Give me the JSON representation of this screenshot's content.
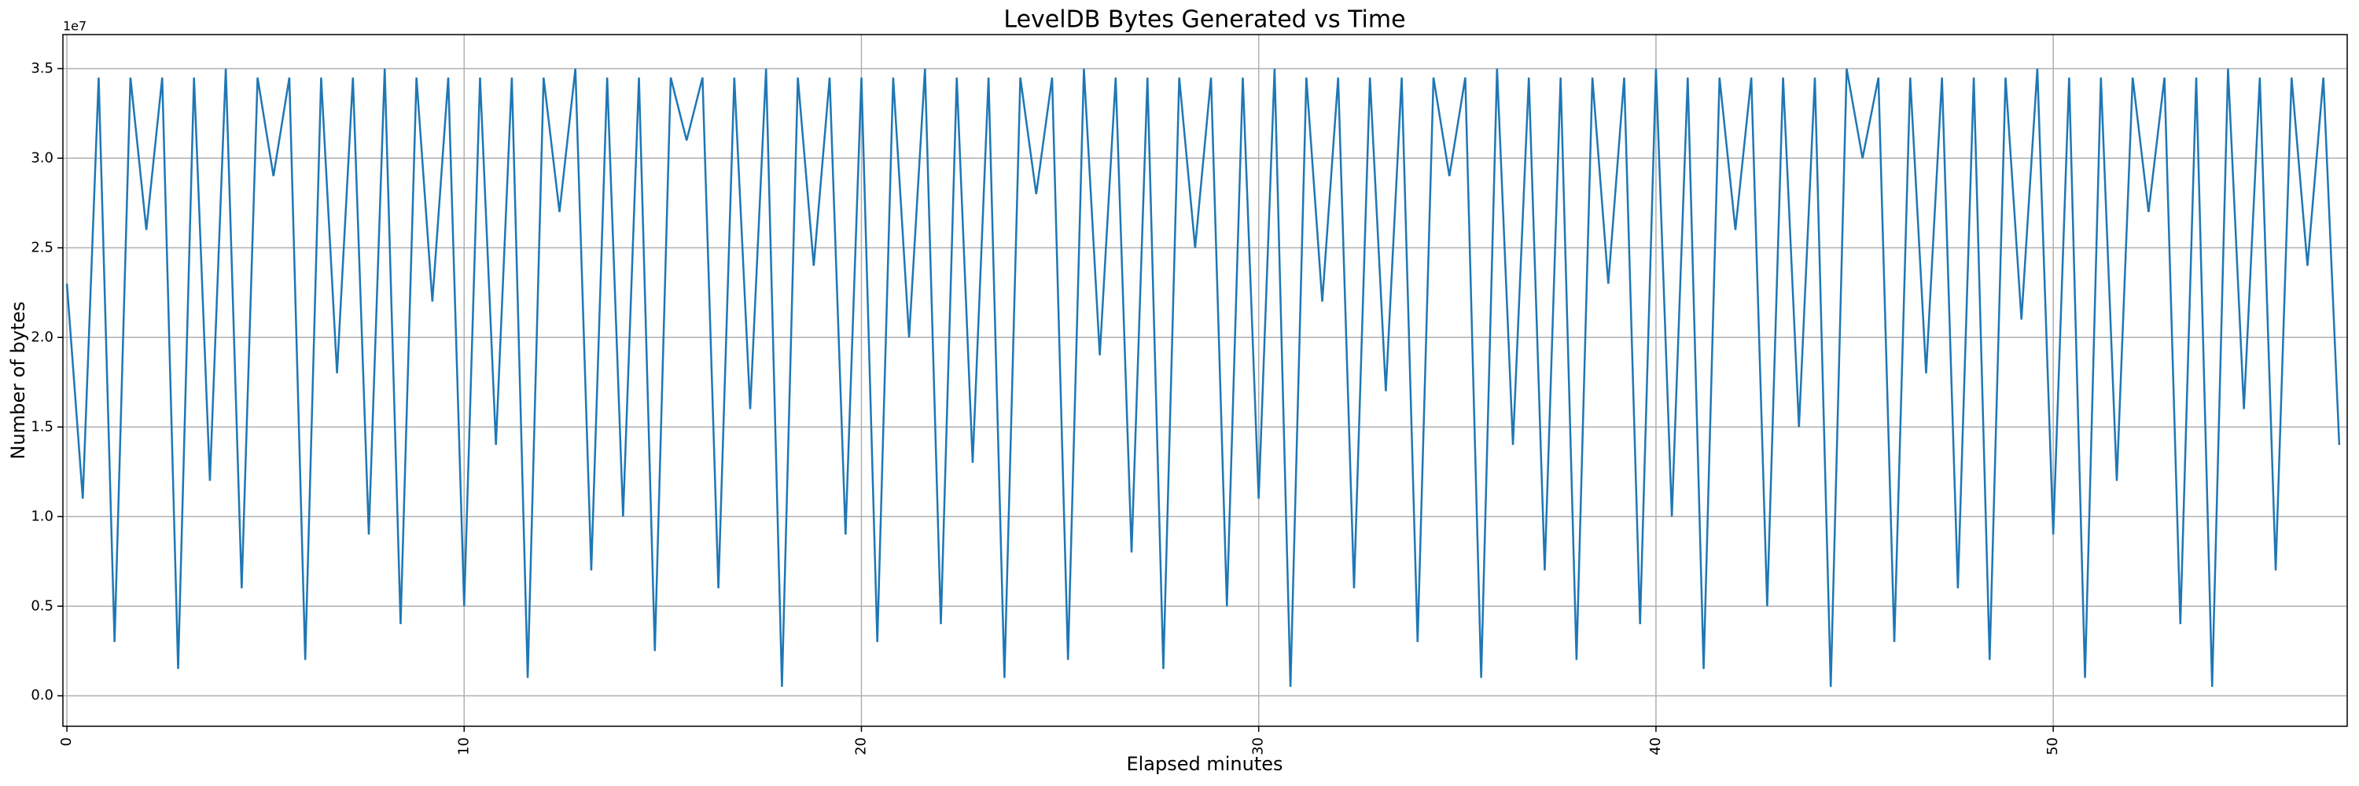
{
  "chart_data": {
    "type": "line",
    "title": "LevelDB Bytes Generated vs Time",
    "xlabel": "Elapsed minutes",
    "ylabel": "Number of bytes",
    "y_offset_text": "1e7",
    "color": "#1f77b4",
    "grid": true,
    "xlim": [
      -0.1,
      57.4
    ],
    "xticks": [
      0,
      10,
      20,
      30,
      40,
      50
    ],
    "ylim": [
      -0.17,
      3.69
    ],
    "yticks": [
      {
        "value": 0,
        "label": "0.0"
      },
      {
        "value": 0.5,
        "label": "0.5"
      },
      {
        "value": 1,
        "label": "1.0"
      },
      {
        "value": 1.5,
        "label": "1.5"
      },
      {
        "value": 2,
        "label": "2.0"
      },
      {
        "value": 2.5,
        "label": "2.5"
      },
      {
        "value": 3,
        "label": "3.0"
      },
      {
        "value": 3.5,
        "label": "3.5"
      }
    ],
    "x": [
      0,
      0.4,
      0.8,
      1.2,
      1.6,
      2,
      2.4,
      2.8,
      3.2,
      3.6,
      4,
      4.4,
      4.8,
      5.2,
      5.6,
      6,
      6.4,
      6.8,
      7.2,
      7.6,
      8,
      8.4,
      8.8,
      9.2,
      9.6,
      10,
      10.4,
      10.8,
      11.2,
      11.6,
      12,
      12.4,
      12.8,
      13.2,
      13.6,
      14,
      14.4,
      14.8,
      15.2,
      15.6,
      16,
      16.4,
      16.8,
      17.2,
      17.6,
      18,
      18.4,
      18.8,
      19.2,
      19.6,
      20,
      20.4,
      20.8,
      21.2,
      21.6,
      22,
      22.4,
      22.8,
      23.2,
      23.6,
      24,
      24.4,
      24.8,
      25.2,
      25.6,
      26,
      26.4,
      26.8,
      27.2,
      27.6,
      28,
      28.4,
      28.8,
      29.2,
      29.6,
      30,
      30.4,
      30.8,
      31.2,
      31.6,
      32,
      32.4,
      32.8,
      33.2,
      33.6,
      34,
      34.4,
      34.8,
      35.2,
      35.6,
      36,
      36.4,
      36.8,
      37.2,
      37.6,
      38,
      38.4,
      38.8,
      39.2,
      39.6,
      40,
      40.4,
      40.8,
      41.2,
      41.6,
      42,
      42.4,
      42.8,
      43.2,
      43.6,
      44,
      44.4,
      44.8,
      45.2,
      45.6,
      46,
      46.4,
      46.8,
      47.2,
      47.6,
      48,
      48.4,
      48.8,
      49.2,
      49.6,
      50,
      50.4,
      50.8,
      51.2,
      51.6,
      52,
      52.4,
      52.8,
      53.2,
      53.6,
      54,
      54.4,
      54.8,
      55.2,
      55.6,
      56,
      56.4,
      56.8,
      57.2
    ],
    "values": [
      2.3,
      1.1,
      3.45,
      0.3,
      3.45,
      2.6,
      3.45,
      0.15,
      3.45,
      1.2,
      3.5,
      0.6,
      3.45,
      2.9,
      3.45,
      0.2,
      3.45,
      1.8,
      3.45,
      0.9,
      3.5,
      0.4,
      3.45,
      2.2,
      3.45,
      0.5,
      3.45,
      1.4,
      3.45,
      0.1,
      3.45,
      2.7,
      3.5,
      0.7,
      3.45,
      1.0,
      3.45,
      0.25,
      3.45,
      3.1,
      3.45,
      0.6,
      3.45,
      1.6,
      3.5,
      0.05,
      3.45,
      2.4,
      3.45,
      0.9,
      3.45,
      0.3,
      3.45,
      2.0,
      3.5,
      0.4,
      3.45,
      1.3,
      3.45,
      0.1,
      3.45,
      2.8,
      3.45,
      0.2,
      3.5,
      1.9,
      3.45,
      0.8,
      3.45,
      0.15,
      3.45,
      2.5,
      3.45,
      0.5,
      3.45,
      1.1,
      3.5,
      0.05,
      3.45,
      2.2,
      3.45,
      0.6,
      3.45,
      1.7,
      3.45,
      0.3,
      3.45,
      2.9,
      3.45,
      0.1,
      3.5,
      1.4,
      3.45,
      0.7,
      3.45,
      0.2,
      3.45,
      2.3,
      3.45,
      0.4,
      3.5,
      1.0,
      3.45,
      0.15,
      3.45,
      2.6,
      3.45,
      0.5,
      3.45,
      1.5,
      3.45,
      0.05,
      3.5,
      3.0,
      3.45,
      0.3,
      3.45,
      1.8,
      3.45,
      0.6,
      3.45,
      0.2,
      3.45,
      2.1,
      3.5,
      0.9,
      3.45,
      0.1,
      3.45,
      1.2,
      3.45,
      2.7,
      3.45,
      0.4,
      3.45,
      0.05,
      3.5,
      1.6,
      3.45,
      0.7,
      3.45,
      2.4,
      3.45,
      1.4
    ]
  }
}
